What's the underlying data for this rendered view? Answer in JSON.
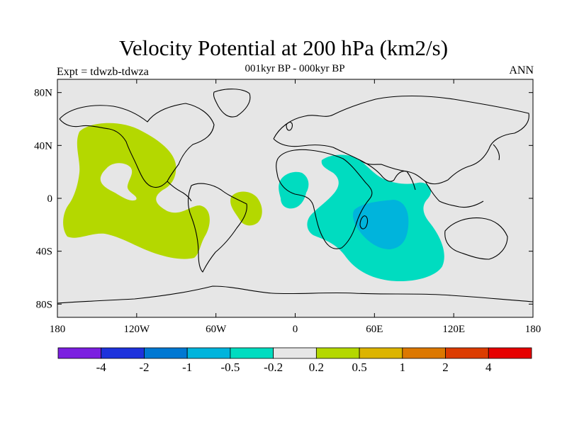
{
  "figure": {
    "title": "Velocity Potential at 200 hPa (km2/s)",
    "subtitle": "001kyr BP - 000kyr BP",
    "left_label": "Expt = tdwzb-tdwza",
    "right_label": "ANN"
  },
  "map": {
    "type": "filled-contour-map",
    "projection": "cylindrical-equidistant",
    "background_color": "#e6e6e6",
    "coastline_color": "#000000",
    "lon_ticks": [
      "180",
      "120W",
      "60W",
      "0",
      "60E",
      "120E",
      "180"
    ],
    "lat_ticks": [
      "80N",
      "40N",
      "0",
      "40S",
      "80S"
    ],
    "lon_range": [
      -180,
      180
    ],
    "lat_range": [
      -90,
      90
    ]
  },
  "chart_data": {
    "type": "heatmap",
    "title": "Velocity Potential at 200 hPa (km2/s)",
    "subtitle": "001kyr BP - 000kyr BP",
    "xlabel": "",
    "ylabel": "",
    "colorbar": {
      "boundaries": [
        "-4",
        "-2",
        "-1",
        "-0.5",
        "-0.2",
        "0.2",
        "0.5",
        "1",
        "2",
        "4"
      ],
      "colors": [
        "#7b1fe0",
        "#1e32dc",
        "#0078d2",
        "#00b4dc",
        "#00dcc0",
        "#e6e6e6",
        "#b4d800",
        "#dcb400",
        "#dc7800",
        "#dc3c00",
        "#e60000"
      ]
    },
    "regions": [
      {
        "level": "0.2 to 0.5",
        "color": "#b4d800",
        "area": "eastern/central tropical Pacific, 175E-70W, 55N-45S"
      },
      {
        "level": "0.2 to 0.5",
        "color": "#b4d800",
        "area": "tropical South Atlantic off Brazil, 45W-25W, 5N-20S"
      },
      {
        "level": "-0.5 to -0.2",
        "color": "#00dcc0",
        "area": "Africa, Arabia and Indian Ocean, 0-120E, 30N-65S"
      },
      {
        "level": "-0.5 to -0.2",
        "color": "#00dcc0",
        "area": "Gulf of Guinea / West Africa, 10W-10E, 15N-5S"
      },
      {
        "level": "-1 to -0.5",
        "color": "#00b4dc",
        "area": "southern Indian Ocean, 45E-85E, 0-40S"
      }
    ]
  }
}
